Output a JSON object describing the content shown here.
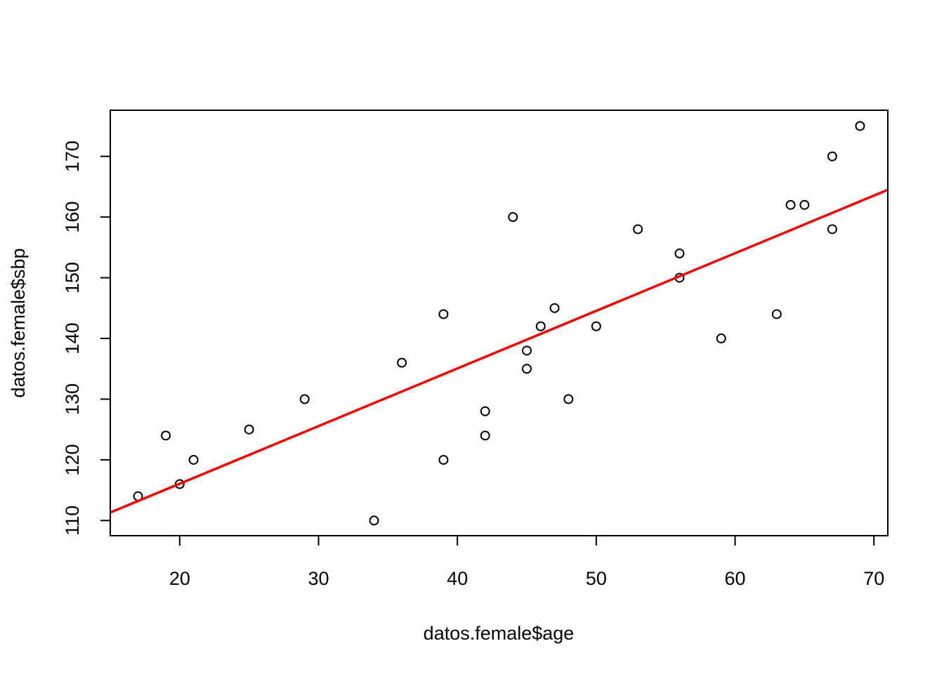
{
  "chart_data": {
    "type": "scatter",
    "title": "",
    "xlabel": "datos.female$age",
    "ylabel": "datos.female$sbp",
    "xlim": [
      15,
      71
    ],
    "ylim": [
      107.5,
      177.6
    ],
    "xticks": [
      20,
      30,
      40,
      50,
      60,
      70
    ],
    "yticks": [
      110,
      120,
      130,
      140,
      150,
      160,
      170
    ],
    "grid": false,
    "legend": "none",
    "point_color": "#000000",
    "line_color": "#ff0000",
    "points": [
      {
        "x": 17,
        "y": 114
      },
      {
        "x": 19,
        "y": 124
      },
      {
        "x": 20,
        "y": 116
      },
      {
        "x": 21,
        "y": 120
      },
      {
        "x": 25,
        "y": 125
      },
      {
        "x": 29,
        "y": 130
      },
      {
        "x": 34,
        "y": 110
      },
      {
        "x": 36,
        "y": 136
      },
      {
        "x": 39,
        "y": 144
      },
      {
        "x": 39,
        "y": 120
      },
      {
        "x": 42,
        "y": 128
      },
      {
        "x": 42,
        "y": 124
      },
      {
        "x": 44,
        "y": 160
      },
      {
        "x": 45,
        "y": 138
      },
      {
        "x": 45,
        "y": 135
      },
      {
        "x": 46,
        "y": 142
      },
      {
        "x": 47,
        "y": 145
      },
      {
        "x": 48,
        "y": 130
      },
      {
        "x": 50,
        "y": 142
      },
      {
        "x": 53,
        "y": 158
      },
      {
        "x": 56,
        "y": 154
      },
      {
        "x": 56,
        "y": 150
      },
      {
        "x": 59,
        "y": 140
      },
      {
        "x": 63,
        "y": 144
      },
      {
        "x": 64,
        "y": 162
      },
      {
        "x": 65,
        "y": 162
      },
      {
        "x": 67,
        "y": 170
      },
      {
        "x": 67,
        "y": 158
      },
      {
        "x": 69,
        "y": 175
      }
    ],
    "regression_line": {
      "intercept": 97.08,
      "slope": 0.9493
    }
  }
}
